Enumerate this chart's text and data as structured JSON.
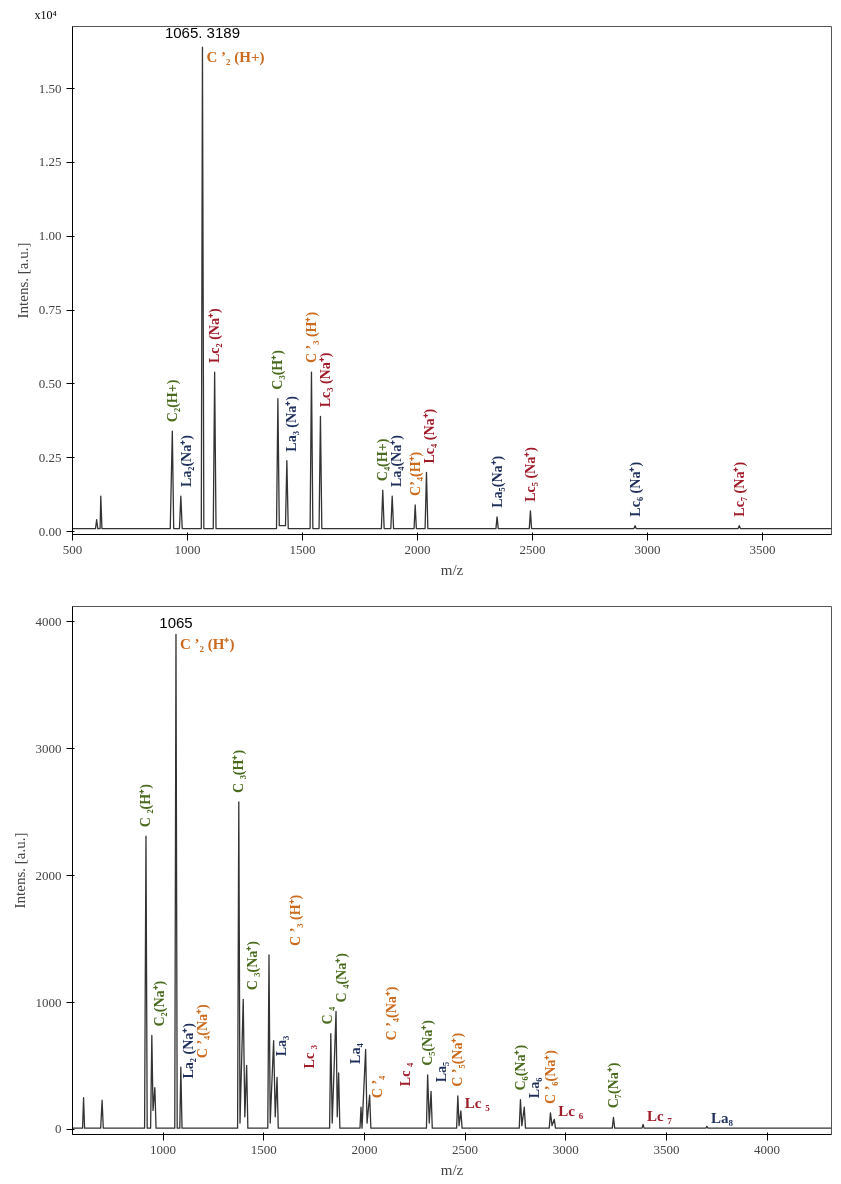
{
  "chart_data": [
    {
      "type": "line",
      "xlabel": "m/z",
      "ylabel": "Intens. [a.u.]",
      "xlim": [
        500,
        3800
      ],
      "ylim": [
        -0.01,
        1.71
      ],
      "xticks": [
        500,
        1000,
        1500,
        2000,
        2500,
        3000,
        3500
      ],
      "yticks": [
        {
          "value": 0,
          "label": "0.00"
        },
        {
          "value": 0.25,
          "label": "0.25"
        },
        {
          "value": 0.5,
          "label": "0.50"
        },
        {
          "value": 0.75,
          "label": "0.75"
        },
        {
          "value": 1,
          "label": "1.00"
        },
        {
          "value": 1.25,
          "label": "1.25"
        },
        {
          "value": 1.5,
          "label": "1.50"
        }
      ],
      "grid": false,
      "marker": "none",
      "line_style": "solid",
      "x": [
        500,
        600,
        605,
        610,
        620,
        623,
        628,
        925,
        934,
        940,
        965,
        971,
        977,
        1060,
        1065,
        1071,
        1112,
        1118,
        1124,
        1387,
        1393,
        1399,
        1426,
        1432,
        1438,
        1533,
        1539,
        1545,
        1572,
        1578,
        1584,
        1843,
        1849,
        1855,
        1884,
        1890,
        1896,
        1985,
        1990,
        1995,
        2033,
        2039,
        2045,
        2341,
        2346,
        2351,
        2486,
        2491,
        2496,
        2941,
        2946,
        2951,
        3394,
        3399,
        3404,
        3800
      ],
      "series": [
        {
          "color": "#333333",
          "values": [
            0.01,
            0.01,
            0.04,
            0.01,
            0.01,
            0.12,
            0.01,
            0.01,
            0.34,
            0.01,
            0.01,
            0.12,
            0.01,
            0.01,
            1.64,
            0.01,
            0.01,
            0.54,
            0.01,
            0.01,
            0.45,
            0.02,
            0.02,
            0.24,
            0.01,
            0.01,
            0.54,
            0.01,
            0.01,
            0.39,
            0.01,
            0.01,
            0.14,
            0.01,
            0.01,
            0.12,
            0.01,
            0.01,
            0.09,
            0.01,
            0.01,
            0.2,
            0.01,
            0.01,
            0.05,
            0.01,
            0.01,
            0.07,
            0.01,
            0.01,
            0.02,
            0.01,
            0.01,
            0.02,
            0.01,
            0.01
          ]
        }
      ],
      "annotations": [
        {
          "text": "1065. 3189",
          "x": 1065,
          "y": 1.64
        },
        {
          "text": "C ’₂ (H+)",
          "x": 1065,
          "y": 1.64
        },
        "x10⁴",
        {
          "text": "C₂(H+)",
          "x": 934,
          "y": 0.34
        },
        {
          "text": "La₂(Na⁺)",
          "x": 971,
          "y": 0.12
        },
        {
          "text": "Lc₂ (Na⁺)",
          "x": 1118,
          "y": 0.54
        },
        {
          "text": "C₃(H⁺)",
          "x": 1393,
          "y": 0.45
        },
        {
          "text": "La₃ (Na⁺)",
          "x": 1432,
          "y": 0.24
        },
        {
          "text": "C ’₃ (H⁺)",
          "x": 1539,
          "y": 0.54
        },
        {
          "text": "Lc₃ (Na⁺)",
          "x": 1578,
          "y": 0.39
        },
        {
          "text": "C₄(H+)",
          "x": 1849,
          "y": 0.14
        },
        {
          "text": "La₄(Na⁺)",
          "x": 1890,
          "y": 0.12
        },
        {
          "text": "C’₄(H⁺)",
          "x": 1990,
          "y": 0.09
        },
        {
          "text": "Lc₄ (Na⁺)",
          "x": 2039,
          "y": 0.2
        },
        {
          "text": "La₅(Na⁺)",
          "x": 2346,
          "y": 0.05
        },
        {
          "text": "Lc₅ (Na⁺)",
          "x": 2491,
          "y": 0.07
        },
        {
          "text": "Lc₆ (Na⁺)",
          "x": 2946,
          "y": 0.02
        },
        {
          "text": "Lc₇ (Na⁺)",
          "x": 3399,
          "y": 0.02
        }
      ]
    },
    {
      "type": "line",
      "xlabel": "m/z",
      "ylabel": "Intens. [a.u.]",
      "xlim": [
        550,
        4320
      ],
      "ylim": [
        -40,
        4120
      ],
      "xticks": [
        1000,
        1500,
        2000,
        2500,
        3000,
        3500,
        4000
      ],
      "yticks": [
        0,
        1000,
        2000,
        3000,
        4000
      ],
      "grid": false,
      "marker": "none",
      "line_style": "solid",
      "x": [
        550,
        600,
        605,
        610,
        690,
        697,
        703,
        908,
        915,
        921,
        938,
        944,
        950,
        959,
        965,
        1058,
        1064,
        1070,
        1083,
        1088,
        1094,
        1370,
        1376,
        1382,
        1398,
        1406,
        1415,
        1421,
        1520,
        1526,
        1532,
        1549,
        1557,
        1566,
        1572,
        1827,
        1833,
        1840,
        1859,
        1865,
        1872,
        1878,
        1978,
        1983,
        1988,
        2006,
        2013,
        2026,
        2032,
        2308,
        2314,
        2322,
        2331,
        2337,
        2458,
        2464,
        2470,
        2479,
        2485,
        2769,
        2775,
        2782,
        2794,
        2800,
        2918,
        2924,
        2932,
        2943,
        2949,
        3231,
        3237,
        3243,
        3379,
        3384,
        3389,
        3696,
        3701,
        3706,
        4320
      ],
      "series": [
        {
          "color": "#333333",
          "values": [
            10,
            10,
            250,
            10,
            10,
            230,
            10,
            10,
            2310,
            10,
            10,
            740,
            150,
            330,
            10,
            10,
            3900,
            10,
            10,
            490,
            10,
            10,
            2580,
            50,
            1025,
            100,
            505,
            10,
            10,
            1375,
            50,
            700,
            100,
            410,
            10,
            10,
            755,
            50,
            930,
            100,
            445,
            10,
            10,
            175,
            10,
            630,
            50,
            270,
            10,
            10,
            430,
            50,
            300,
            10,
            10,
            265,
            30,
            145,
            10,
            10,
            235,
            30,
            175,
            10,
            10,
            130,
            30,
            80,
            10,
            10,
            95,
            10,
            10,
            40,
            10,
            10,
            25,
            10,
            10
          ]
        }
      ],
      "annotations": [
        {
          "text": "1065",
          "x": 1064,
          "y": 3900
        },
        {
          "text": "C ’₂ (H⁺)",
          "x": 1064,
          "y": 3900
        },
        {
          "text": "Lc ₅",
          "x": 2479,
          "y": 145
        },
        {
          "text": "Lc ₆",
          "x": 2943,
          "y": 80
        },
        {
          "text": "Lc ₇",
          "x": 3384,
          "y": 40
        },
        {
          "text": "La₈",
          "x": 3701,
          "y": 25
        },
        {
          "text": "C ₂(H⁺)",
          "x": 915,
          "y": 2310
        },
        {
          "text": "C₂(Na⁺)",
          "x": 944,
          "y": 740
        },
        {
          "text": "La₂ (Na⁺)",
          "x": 959,
          "y": 330
        },
        {
          "text": "C ’₄(Na⁺)",
          "x": 1088,
          "y": 490
        },
        {
          "text": "C ₃(H⁺)",
          "x": 1376,
          "y": 2580
        },
        {
          "text": "C ₃(Na⁺)",
          "x": 1398,
          "y": 1025
        },
        {
          "text": "La₃",
          "x": 1415,
          "y": 505
        },
        {
          "text": "C ’₃ (H⁺)",
          "x": 1526,
          "y": 1375
        },
        {
          "text": "Lc ₃",
          "x": 1566,
          "y": 410
        },
        {
          "text": "C ₄",
          "x": 1833,
          "y": 755
        },
        {
          "text": "C ₄(Na⁺)",
          "x": 1859,
          "y": 930
        },
        {
          "text": "La₄",
          "x": 1872,
          "y": 445
        },
        {
          "text": "C ’₄",
          "x": 1983,
          "y": 175
        },
        {
          "text": "C ’₄(Na⁺)",
          "x": 2006,
          "y": 630
        },
        {
          "text": "Lc ₄",
          "x": 2026,
          "y": 270
        },
        {
          "text": "C₅(Na⁺)",
          "x": 2314,
          "y": 430
        },
        {
          "text": "La₅",
          "x": 2331,
          "y": 300
        },
        {
          "text": "C ’₅(Na⁺)",
          "x": 2464,
          "y": 265
        },
        {
          "text": "C₆(Na⁺)",
          "x": 2775,
          "y": 235
        },
        {
          "text": "La₆",
          "x": 2794,
          "y": 175
        },
        {
          "text": "C ’₆(Na⁺)",
          "x": 2924,
          "y": 130
        },
        {
          "text": "C₇(Na⁺)",
          "x": 3237,
          "y": 95
        }
      ]
    }
  ]
}
